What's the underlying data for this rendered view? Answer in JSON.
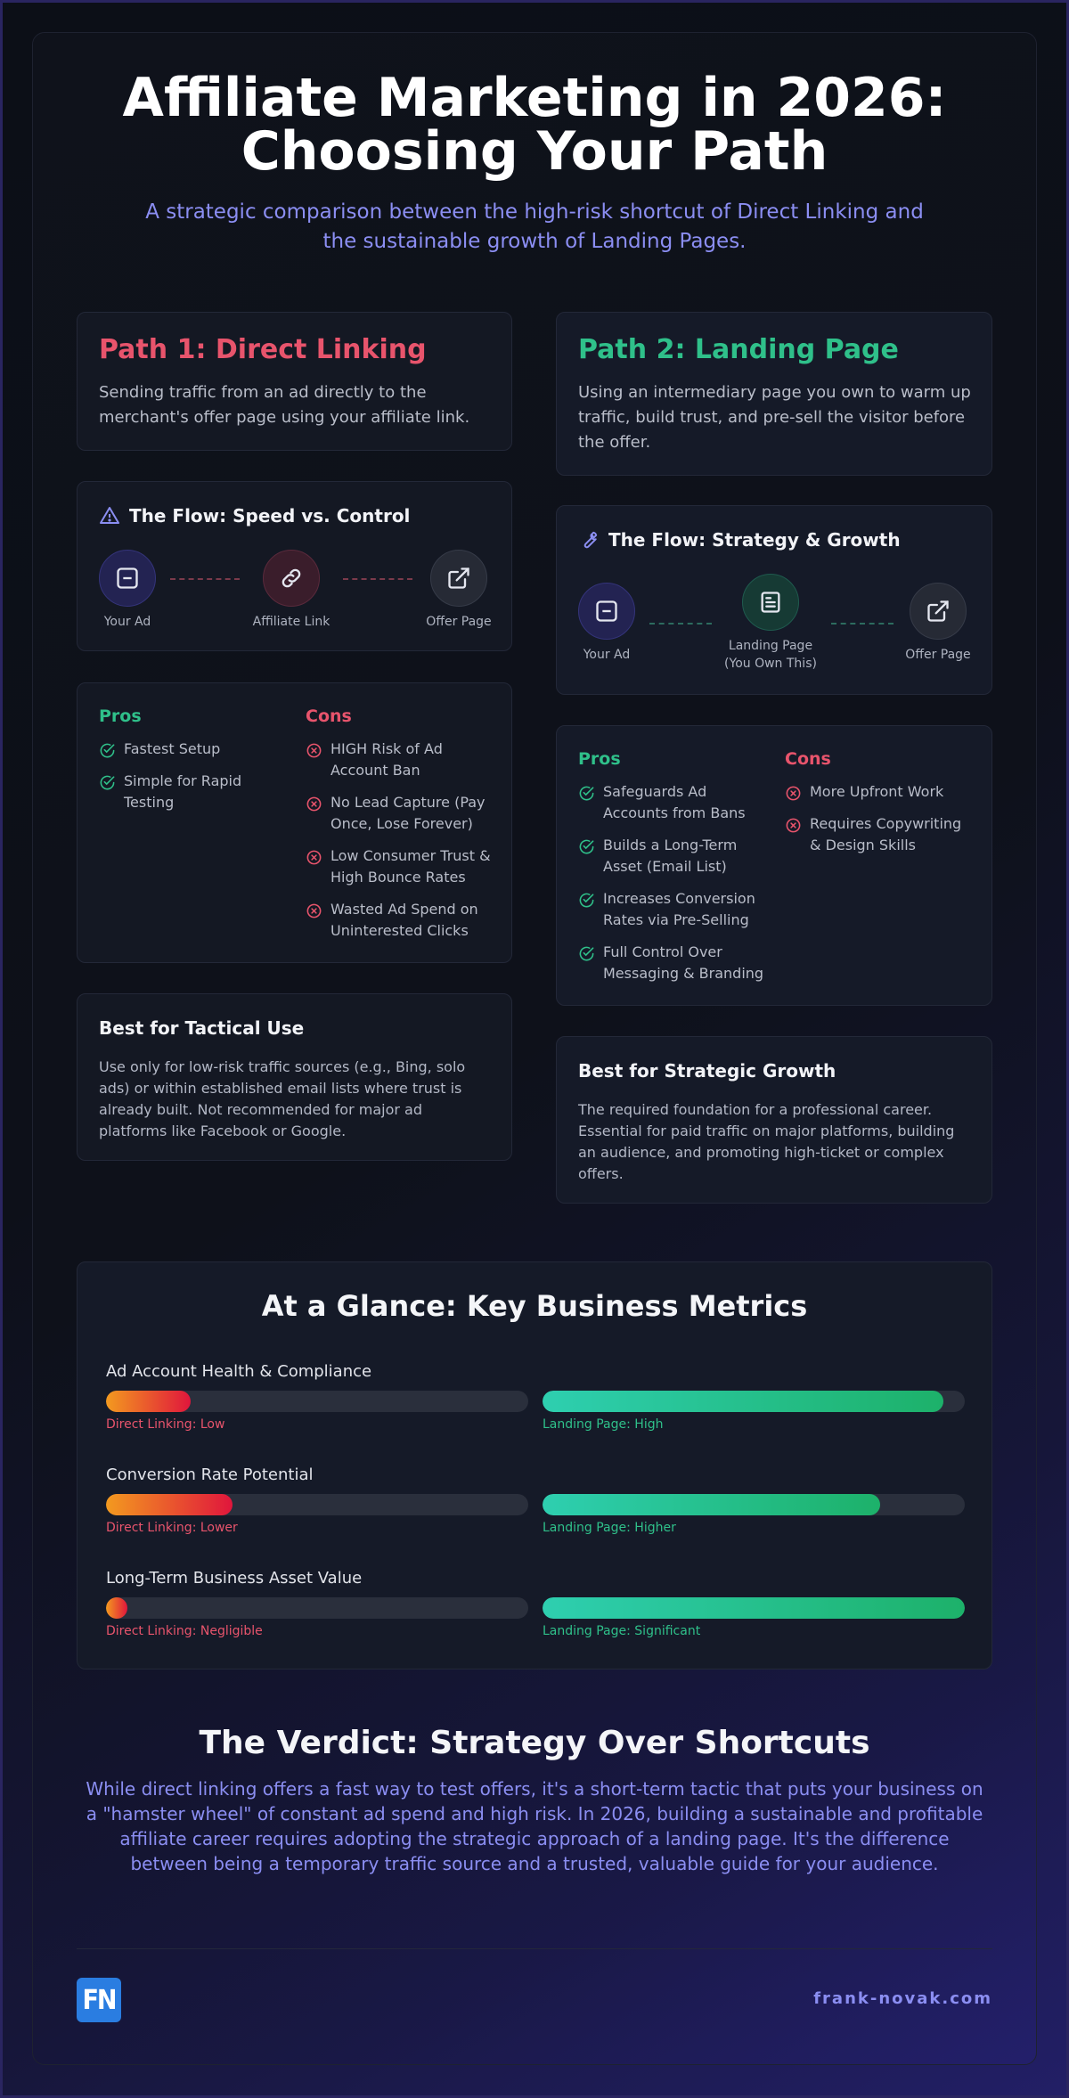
{
  "header": {
    "title_line1": "Affiliate Marketing in 2026:",
    "title_line2": "Choosing Your Path",
    "subtitle": "A strategic comparison between the high-risk shortcut of Direct Linking and the sustainable growth of Landing Pages."
  },
  "path1": {
    "title": "Path 1: Direct Linking",
    "description": "Sending traffic from an ad directly to the merchant's offer page using your affiliate link.",
    "flow_title": "The Flow: Speed vs. Control",
    "flow_nodes": [
      "Your Ad",
      "Affiliate Link",
      "Offer Page"
    ],
    "pros_title": "Pros",
    "pros": [
      "Fastest Setup",
      "Simple for Rapid Testing"
    ],
    "cons_title": "Cons",
    "cons": [
      "HIGH Risk of Ad Account Ban",
      "No Lead Capture (Pay Once, Lose Forever)",
      "Low Consumer Trust & High Bounce Rates",
      "Wasted Ad Spend on Uninterested Clicks"
    ],
    "best_title": "Best for Tactical Use",
    "best_text": "Use only for low-risk traffic sources (e.g., Bing, solo ads) or within established email lists where trust is already built. Not recommended for major ad platforms like Facebook or Google."
  },
  "path2": {
    "title": "Path 2: Landing Page",
    "description": "Using an intermediary page you own to warm up traffic, build trust, and pre-sell the visitor before the offer.",
    "flow_title": "The Flow: Strategy & Growth",
    "flow_nodes": [
      "Your Ad",
      "Landing Page",
      "(You Own This)",
      "Offer Page"
    ],
    "pros_title": "Pros",
    "pros": [
      "Safeguards Ad Accounts from Bans",
      "Builds a Long-Term Asset (Email List)",
      "Increases Conversion Rates via Pre-Selling",
      "Full Control Over Messaging & Branding"
    ],
    "cons_title": "Cons",
    "cons": [
      "More Upfront Work",
      "Requires Copywriting & Design Skills"
    ],
    "best_title": "Best for Strategic Growth",
    "best_text": "The required foundation for a professional career. Essential for paid traffic on major platforms, building an audience, and promoting high-ticket or complex offers."
  },
  "metrics": {
    "title": "At a Glance: Key Business Metrics",
    "items": [
      {
        "label": "Ad Account Health & Compliance",
        "direct_level": 0.2,
        "direct_caption": "Direct Linking: Low",
        "landing_level": 0.95,
        "landing_caption": "Landing Page: High"
      },
      {
        "label": "Conversion Rate Potential",
        "direct_level": 0.3,
        "direct_caption": "Direct Linking: Lower",
        "landing_level": 0.8,
        "landing_caption": "Landing Page: Higher"
      },
      {
        "label": "Long-Term Business Asset Value",
        "direct_level": 0.05,
        "direct_caption": "Direct Linking: Negligible",
        "landing_level": 1.0,
        "landing_caption": "Landing Page: Significant"
      }
    ]
  },
  "verdict": {
    "title": "The Verdict: Strategy Over Shortcuts",
    "text": "While direct linking offers a fast way to test offers, it's a short-term tactic that puts your business on a \"hamster wheel\" of constant ad spend and high risk. In 2026, building a sustainable and profitable affiliate career requires adopting the strategic approach of a landing page. It's the difference between being a temporary traffic source and a trusted, valuable guide for your audience."
  },
  "footer": {
    "logo_text": "FN",
    "site": "frank-novak.com"
  },
  "colors": {
    "direct_accent": "#e8546c",
    "landing_accent": "#2fc08a",
    "subtitle": "#8b8ef2"
  },
  "icons": {
    "warning": "warning-triangle-icon",
    "wrench": "wrench-icon",
    "ad": "minus-square-icon",
    "link": "link-icon",
    "page": "document-icon",
    "external": "external-link-icon"
  }
}
